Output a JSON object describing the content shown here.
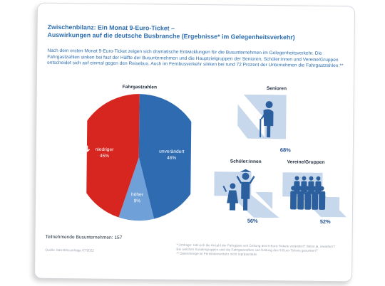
{
  "title_line1": "Zwischenbilanz: Ein Monat 9-Euro-Ticket –",
  "title_line2": "Auswirkungen auf die deutsche Busbranche (Ergebnisse* im Gelegenheitsverkehr)",
  "intro": "Nach dem ersten Monat 9-Euro-Ticket zeigen sich dramatische Entwicklungen für die Busunternehmen im Gelegenheitsverkehr. Die Fahrgastzahlen sinken bei fast der Hälfte der Busunternehmen und die Hauptzielgruppen der Senioren, Schüler:innen und Vereine/Gruppen entscheidet sich auf einmal gegen den Reisebus. Auch im Fernbusverkehr sinken bei rund 72 Prozent der Unternehmen die Fahrgastzahlen.**",
  "pie_title": "Fahrgastzahlen",
  "chart_data": {
    "type": "pie",
    "title": "Fahrgastzahlen",
    "slices": [
      {
        "label": "unverändert",
        "value": 46,
        "value_label": "46%",
        "color": "#2f6bb0"
      },
      {
        "label": "höher",
        "value": 9,
        "value_label": "9%",
        "color": "#6fa0d8"
      },
      {
        "label": "niedriger",
        "value": 45,
        "value_label": "45%",
        "color": "#d7261f"
      }
    ]
  },
  "groups": [
    {
      "label": "Senioren",
      "percent": "68%",
      "icon": "senior-icon"
    },
    {
      "label": "Schüler:innen",
      "percent": "56%",
      "icon": "students-icon"
    },
    {
      "label": "Vereine/Gruppen",
      "percent": "52%",
      "icon": "group-icon"
    }
  ],
  "participants": "Teilnehmende Busunternehmen: 157",
  "source": "Quelle: bdo-Blitzumfrage 07/2022",
  "note1": "* Umfrage: Hat sich die Anzahl der Fahrgäste seit Geltung des 9-Euro-Tickets verändert? Wenn ja, inwiefern?",
  "note2": "Bei welchen Kundengruppen sind die Fahrgastzahlen seit Geltung des 9-Euro-Tickets gesunken?",
  "note3": "** Datenmenge im Fernlinienverkehr nicht repräsentativ",
  "colors": {
    "accent": "#2c6db0",
    "red": "#d7261f",
    "blue": "#2f6bb0",
    "light_blue": "#6fa0d8",
    "arrow": "#c7d8ec",
    "dark_blue": "#2b5f9e"
  }
}
